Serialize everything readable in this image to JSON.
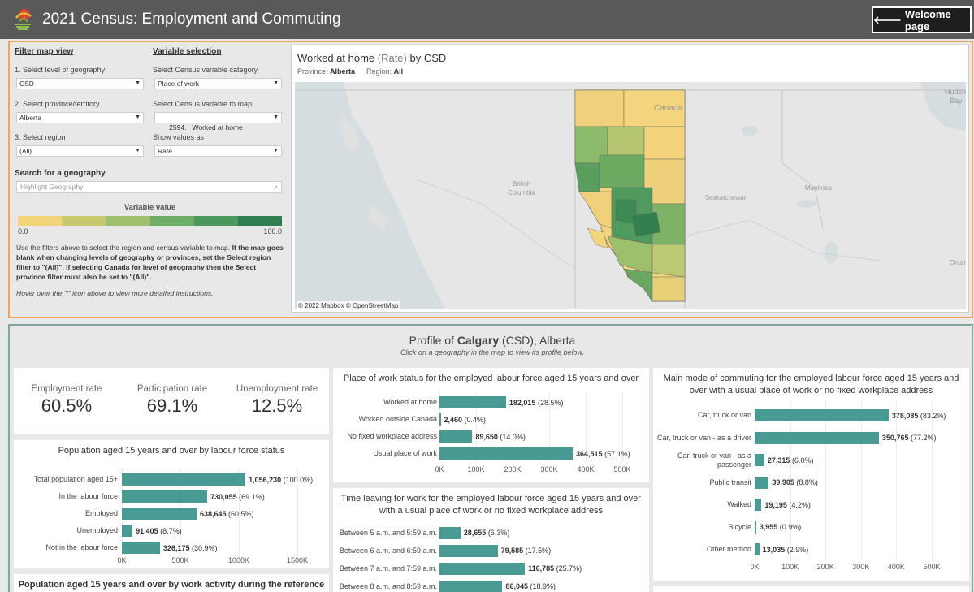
{
  "header": {
    "title": "2021 Census: Employment and Commuting",
    "welcome_label": "Welcome page",
    "welcome_arrow": "🡐"
  },
  "filters": {
    "map_view_title": "Filter map view",
    "variable_title": "Variable selection",
    "geo_level_label": "1. Select level of geography",
    "geo_level_value": "CSD",
    "province_label": "2. Select province/territory",
    "province_value": "Alberta",
    "region_label": "3. Select region",
    "region_value": "(All)",
    "category_label": "Select Census variable category",
    "category_value": "Place of work",
    "variable_label": "Select Census variable to map",
    "variable_value": "2594.   Worked at home",
    "show_as_label": "Show values as",
    "show_as_value": "Rate",
    "search_title": "Search for a geography",
    "search_placeholder": "Highlight Geography",
    "legend_title": "Variable value",
    "legend_min": "0.0",
    "legend_max": "100.0",
    "legend_colors": [
      "#f1d37a",
      "#c8ca72",
      "#9fc06b",
      "#6fae66",
      "#4c9960",
      "#2f7e4f"
    ],
    "instructions_plain1": "Use the filters above to select the region and census variable to map. ",
    "instructions_bold": "If the map goes blank when changing levels of geography or provinces, set the Select region filter to \"(All)\". If selecting Canada for level of geography then the Select province filter must also be set to \"(All)\".",
    "hover_note": "Hover over the \"i\" icon above to view more detailed instructions."
  },
  "map": {
    "title_var": "Worked at home",
    "title_mid": " (Rate) ",
    "title_end": "by CSD",
    "province_label": "Province: ",
    "province_value": "Alberta",
    "region_label": "Region: ",
    "region_value": "All",
    "copyright": "© 2022 Mapbox © OpenStreetMap",
    "place_labels": {
      "canada": "Canada",
      "bc1": "British",
      "bc2": "Columbia",
      "sask": "Saskatchewan",
      "manitoba": "Manitoba",
      "hudson1": "Hudson",
      "hudson2": "Bay",
      "ontario": "Ontari"
    }
  },
  "profile": {
    "title_prefix": "Profile of ",
    "title_place": "Calgary",
    "title_suffix": " (CSD), Alberta",
    "subtitle": "Click on a geography in the map to view its profile below."
  },
  "kpis": [
    {
      "label": "Employment rate",
      "value": "60.5%"
    },
    {
      "label": "Participation rate",
      "value": "69.1%"
    },
    {
      "label": "Unemployment rate",
      "value": "12.5%"
    }
  ],
  "chart_data": [
    {
      "type": "bar",
      "title": "Population aged 15 years and over by labour force status",
      "categories": [
        "Total population aged 15+",
        "In the labour force",
        "Employed",
        "Unemployed",
        "Not in the labour force"
      ],
      "values": [
        1056230,
        730055,
        638645,
        91405,
        326175
      ],
      "labels": [
        "1,056,230",
        "730,055",
        "638,645",
        "91,405",
        "326,175"
      ],
      "pct": [
        "(100.0%)",
        "(69.1%)",
        "(60.5%)",
        "(8.7%)",
        "(30.9%)"
      ],
      "ticks": [
        "0K",
        "500K",
        "1000K",
        "1500K"
      ],
      "xlim": [
        0,
        1500000
      ]
    },
    {
      "type": "bar",
      "title": "Place of work status for the employed labour force aged 15 years and over",
      "categories": [
        "Worked at home",
        "Worked outside Canada",
        "No fixed workplace address",
        "Usual place of work"
      ],
      "values": [
        182015,
        2460,
        89650,
        364515
      ],
      "labels": [
        "182,015",
        "2,460",
        "89,650",
        "364,515"
      ],
      "pct": [
        "(28.5%)",
        "(0.4%)",
        "(14.0%)",
        "(57.1%)"
      ],
      "ticks": [
        "0K",
        "100K",
        "200K",
        "300K",
        "400K",
        "500K"
      ],
      "xlim": [
        0,
        500000
      ]
    },
    {
      "type": "bar",
      "title": "Time leaving for work for the employed labour force aged 15 years and over with a usual place of work or no fixed workplace address",
      "categories": [
        "Between 5 a.m. and 5:59 a.m.",
        "Between 6 a.m. and 6:59 a.m.",
        "Between 7 a.m. and 7:59 a.m.",
        "Between 8 a.m. and 8:59 a.m."
      ],
      "values": [
        28655,
        79585,
        116785,
        86045
      ],
      "labels": [
        "28,655",
        "79,585",
        "116,785",
        "86,045"
      ],
      "pct": [
        "(6.3%)",
        "(17.5%)",
        "(25.7%)",
        "(18.9%)"
      ],
      "xlim": [
        0,
        250000
      ]
    },
    {
      "type": "bar",
      "title": "Main mode of commuting for the employed labour force aged 15 years and over with a usual place of work or no fixed workplace address",
      "categories": [
        "Car, truck or van",
        "Car, truck or van - as a driver",
        "Car, truck or van - as a passenger",
        "Public transit",
        "Walked",
        "Bicycle",
        "Other method"
      ],
      "values": [
        378085,
        350765,
        27315,
        39905,
        19195,
        3955,
        13035
      ],
      "labels": [
        "378,085",
        "350,765",
        "27,315",
        "39,905",
        "19,195",
        "3,955",
        "13,035"
      ],
      "pct": [
        "(83.2%)",
        "(77.2%)",
        "(6.0%)",
        "(8.8%)",
        "(4.2%)",
        "(0.9%)",
        "(2.9%)"
      ],
      "ticks": [
        "0K",
        "100K",
        "200K",
        "300K",
        "400K",
        "500K"
      ],
      "xlim": [
        0,
        500000
      ]
    }
  ],
  "work_activity_title": "Population aged 15 years and over by work activity during the reference"
}
